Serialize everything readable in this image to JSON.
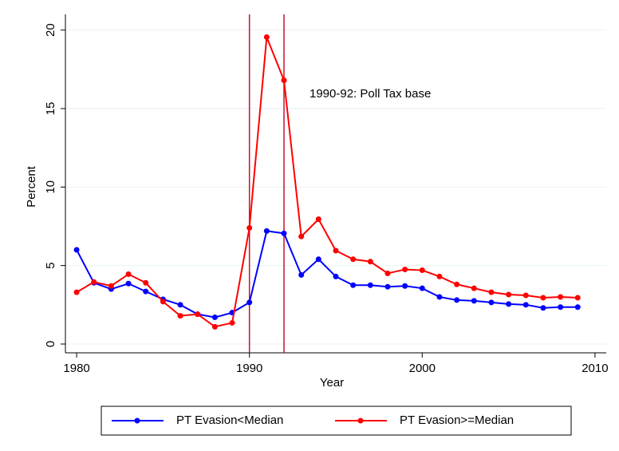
{
  "chart_data": {
    "type": "line",
    "x_label": "Year",
    "y_label": "Percent",
    "annotation": "1990-92: Poll Tax base",
    "x": [
      1980,
      1981,
      1982,
      1983,
      1984,
      1985,
      1986,
      1987,
      1988,
      1989,
      1990,
      1991,
      1992,
      1993,
      1994,
      1995,
      1996,
      1997,
      1998,
      1999,
      2000,
      2001,
      2002,
      2003,
      2004,
      2005,
      2006,
      2007,
      2008,
      2009
    ],
    "series": [
      {
        "name": "PT Evasion<Median",
        "color": "#0000ff",
        "values": [
          6.0,
          3.9,
          3.5,
          3.85,
          3.35,
          2.85,
          2.5,
          1.9,
          1.7,
          2.0,
          2.65,
          7.2,
          7.05,
          4.4,
          5.4,
          4.3,
          3.75,
          3.75,
          3.65,
          3.7,
          3.55,
          3.0,
          2.8,
          2.75,
          2.65,
          2.55,
          2.5,
          2.3,
          2.35,
          2.35
        ]
      },
      {
        "name": "PT Evasion>=Median",
        "color": "#ff0000",
        "values": [
          3.3,
          3.95,
          3.7,
          4.45,
          3.9,
          2.7,
          1.8,
          1.9,
          1.1,
          1.35,
          7.4,
          19.55,
          16.8,
          6.85,
          7.95,
          5.95,
          5.4,
          5.25,
          4.5,
          4.75,
          4.7,
          4.3,
          3.8,
          3.55,
          3.3,
          3.15,
          3.1,
          2.95,
          3.0,
          2.95
        ]
      }
    ],
    "vlines": [
      1990,
      1992
    ],
    "vline_color": "#c4122f",
    "xlim": [
      1979.35,
      2010.65
    ],
    "xticks": [
      1980,
      1990,
      2000,
      2010
    ],
    "ylim": [
      -0.56,
      21.0
    ],
    "yticks": [
      0,
      5,
      10,
      15,
      20
    ],
    "grid": true,
    "legend": "bottom"
  }
}
